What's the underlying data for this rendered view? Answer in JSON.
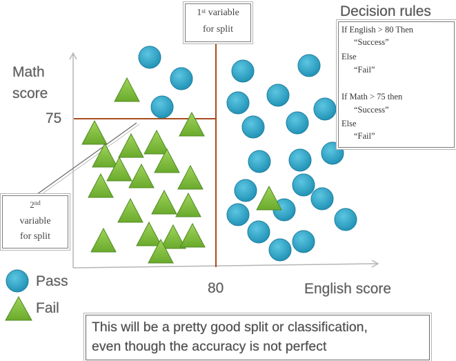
{
  "axes": {
    "y_label_line1": "Math",
    "y_label_line2": "score",
    "x_label": "English score",
    "y_split_tick": "75",
    "x_split_tick": "80"
  },
  "split1_box": {
    "line1": "variable",
    "ordinal_num": "1",
    "ordinal_suffix": "st",
    "line2": "for split"
  },
  "split2_box": {
    "ordinal_num": "2",
    "ordinal_suffix": "nd",
    "line1": "variable",
    "line2": "for split"
  },
  "decision_rules": {
    "title": "Decision rules",
    "lines": [
      "If English > 80 Then",
      "“Success”",
      "Else",
      "“Fail”",
      "If Math > 75 then",
      "“Success”",
      "Else",
      "“Fail”"
    ]
  },
  "legend": {
    "pass_label": "Pass",
    "fail_label": "Fail"
  },
  "caption": {
    "line1": "This will be a pretty good split or classification,",
    "line2": "even though the accuracy is not perfect"
  },
  "colors": {
    "pass_fill": "#2aa3c7",
    "pass_stroke": "#1f7e9c",
    "fail_fill": "#7fbf3a",
    "fail_stroke": "#4f8a22",
    "split_line": "#a64b1e",
    "axis": "#aaaaaa"
  }
}
